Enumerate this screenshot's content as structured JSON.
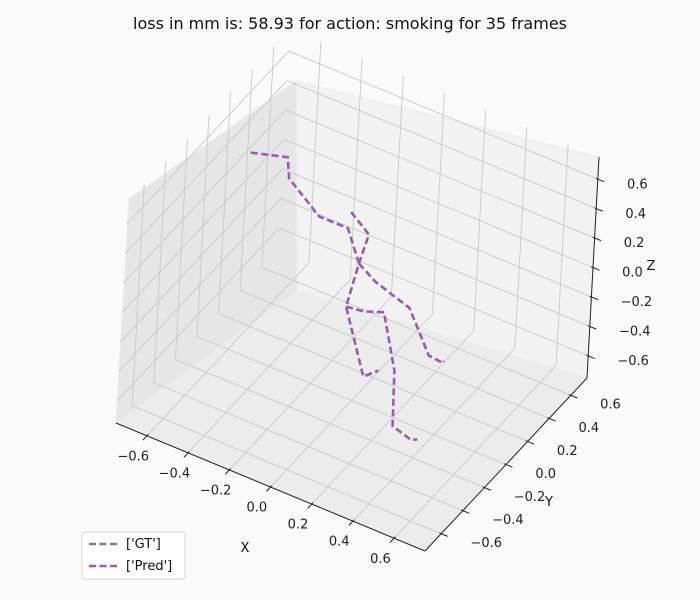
{
  "chart_data": {
    "type": "line3d",
    "title": "loss in mm is: 58.93 for action: smoking for 35 frames",
    "xlabel": "X",
    "ylabel": "Y",
    "zlabel": "Z",
    "xlim": [
      -0.75,
      0.75
    ],
    "ylim": [
      -0.75,
      0.75
    ],
    "zlim": [
      -0.75,
      0.75
    ],
    "xticks": [
      -0.6,
      -0.4,
      -0.2,
      0.0,
      0.2,
      0.4,
      0.6
    ],
    "yticks": [
      -0.6,
      -0.4,
      -0.2,
      0.0,
      0.2,
      0.4,
      0.6
    ],
    "zticks": [
      -0.6,
      -0.4,
      -0.2,
      0.0,
      0.2,
      0.4,
      0.6
    ],
    "xticklabels": [
      "−0.6",
      "−0.4",
      "−0.2",
      "0.0",
      "0.2",
      "0.4",
      "0.6"
    ],
    "yticklabels": [
      "−0.6",
      "−0.4",
      "−0.2",
      "0.0",
      "0.2",
      "0.4",
      "0.6"
    ],
    "zticklabels": [
      "−0.6",
      "−0.4",
      "−0.2",
      "0.0",
      "0.2",
      "0.4",
      "0.6"
    ],
    "grid": true,
    "legend_position": "bottom-left",
    "series": [
      {
        "name": "['GT']",
        "color": "#808080",
        "linestyle": "dashed",
        "segments": []
      },
      {
        "name": "['Pred']",
        "color": "#9b59b6",
        "linestyle": "dashed",
        "segments": [
          [
            [
              -0.05,
              0.0,
              0.5
            ],
            [
              0.04,
              0.0,
              0.4
            ],
            [
              0.0,
              0.0,
              0.18
            ],
            [
              -0.04,
              -0.02,
              -0.12
            ],
            [
              0.04,
              0.02,
              -0.58
            ],
            [
              0.1,
              0.04,
              -0.52
            ]
          ],
          [
            [
              0.0,
              0.0,
              0.18
            ],
            [
              0.12,
              -0.08,
              0.19
            ],
            [
              0.3,
              -0.1,
              0.13
            ],
            [
              0.5,
              -0.3,
              0.08
            ],
            [
              0.58,
              -0.32,
              0.09
            ],
            [
              0.61,
              -0.38,
              0.17
            ]
          ],
          [
            [
              0.0,
              0.0,
              0.18
            ],
            [
              -0.09,
              0.06,
              0.32
            ],
            [
              -0.22,
              0.04,
              0.34
            ],
            [
              -0.45,
              0.2,
              0.34
            ],
            [
              -0.52,
              0.32,
              0.35
            ],
            [
              -0.66,
              0.22,
              0.38
            ]
          ],
          [
            [
              -0.04,
              -0.02,
              -0.12
            ],
            [
              0.07,
              -0.07,
              -0.05
            ],
            [
              0.17,
              -0.08,
              0.01
            ],
            [
              0.22,
              -0.05,
              -0.38
            ],
            [
              0.25,
              -0.1,
              -0.7
            ],
            [
              0.35,
              -0.12,
              -0.72
            ],
            [
              0.38,
              -0.12,
              -0.7
            ]
          ]
        ]
      }
    ]
  }
}
